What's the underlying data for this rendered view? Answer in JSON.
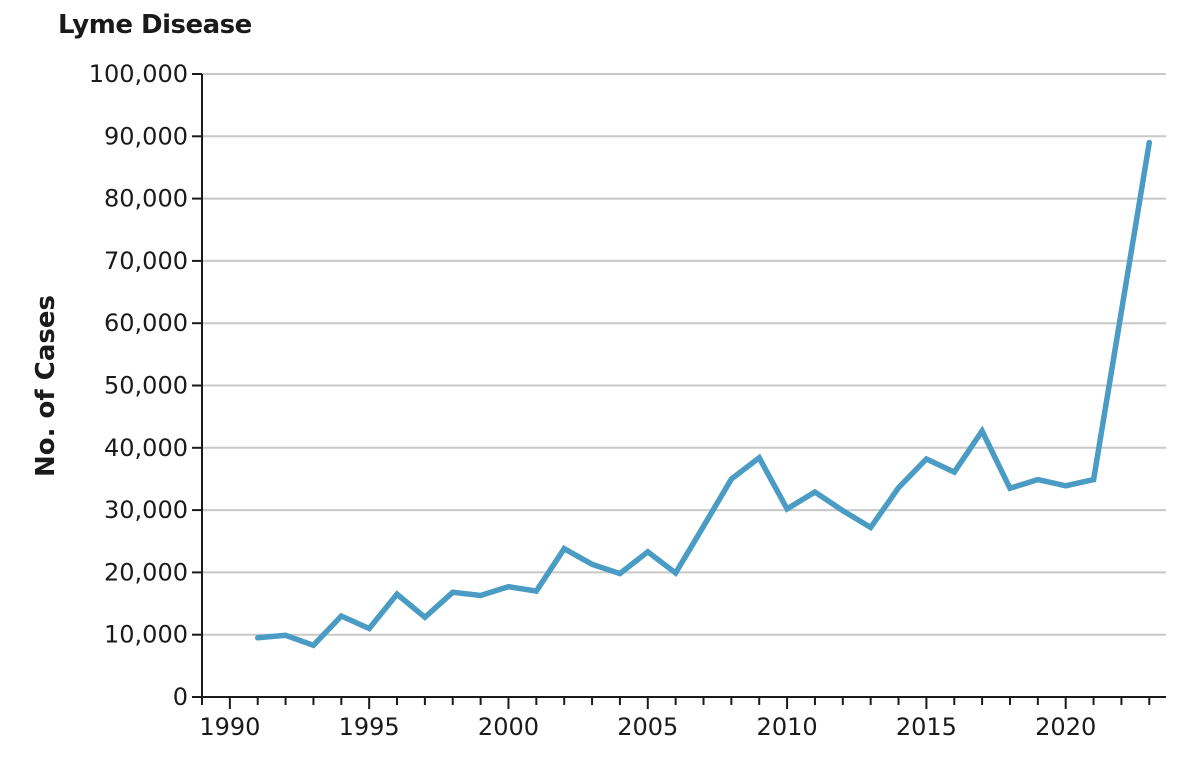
{
  "chart_data": {
    "type": "line",
    "title": "Lyme Disease",
    "xlabel": "",
    "ylabel": "No. of Cases",
    "xlim": [
      1989,
      2023.6
    ],
    "ylim": [
      0,
      100000
    ],
    "x_ticks": [
      1990,
      1995,
      2000,
      2005,
      2010,
      2015,
      2020
    ],
    "x_tick_labels": [
      "1990",
      "1995",
      "2000",
      "2005",
      "2010",
      "2015",
      "2020"
    ],
    "y_ticks": [
      0,
      10000,
      20000,
      30000,
      40000,
      50000,
      60000,
      70000,
      80000,
      90000,
      100000
    ],
    "y_tick_labels": [
      "0",
      "10,000",
      "20,000",
      "30,000",
      "40,000",
      "50,000",
      "60,000",
      "70,000",
      "80,000",
      "90,000",
      "100,000"
    ],
    "grid": "horizontal",
    "line_color": "#4a9cc4",
    "series": [
      {
        "x": [
          1991,
          1992,
          1993,
          1994,
          1995,
          1996,
          1997,
          1998,
          1999,
          2000,
          2001,
          2002,
          2003,
          2004,
          2005,
          2006,
          2007,
          2008,
          2009,
          2010,
          2011,
          2012,
          2013,
          2014,
          2015,
          2016,
          2017,
          2018,
          2019,
          2020,
          2021,
          2023
        ],
        "values": [
          9500,
          9900,
          8300,
          13000,
          11000,
          16500,
          12800,
          16800,
          16300,
          17700,
          17000,
          23800,
          21300,
          19800,
          23300,
          19900,
          27400,
          35000,
          38400,
          30200,
          32900,
          29900,
          27200,
          33600,
          38200,
          36100,
          42700,
          33500,
          34900,
          33900,
          34900,
          89000
        ]
      }
    ]
  }
}
